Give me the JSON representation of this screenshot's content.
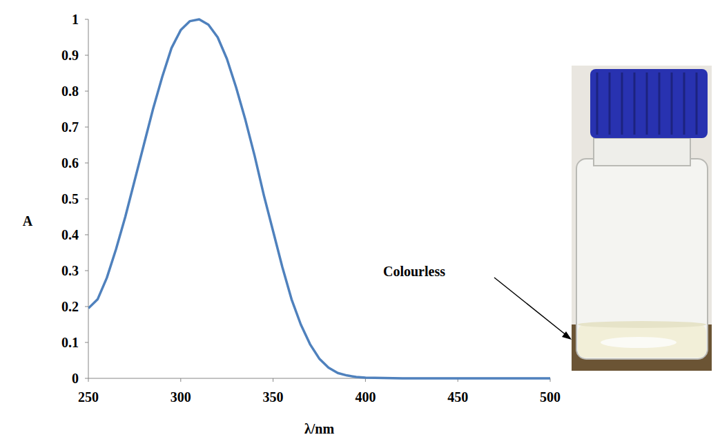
{
  "chart_data": {
    "type": "line",
    "x_label": "λ/nm",
    "y_label": "A",
    "annotation": "Colourless",
    "x": [
      250,
      255,
      260,
      265,
      270,
      275,
      280,
      285,
      290,
      295,
      300,
      305,
      310,
      315,
      320,
      325,
      330,
      335,
      340,
      345,
      350,
      355,
      360,
      365,
      370,
      375,
      380,
      385,
      390,
      395,
      400,
      410,
      420,
      450,
      500
    ],
    "values": [
      0.195,
      0.22,
      0.28,
      0.36,
      0.45,
      0.55,
      0.65,
      0.75,
      0.84,
      0.92,
      0.97,
      0.995,
      1.0,
      0.985,
      0.95,
      0.89,
      0.81,
      0.72,
      0.62,
      0.51,
      0.41,
      0.31,
      0.22,
      0.15,
      0.095,
      0.055,
      0.03,
      0.015,
      0.008,
      0.004,
      0.002,
      0.001,
      0,
      0,
      0
    ],
    "color": "#4f81bd",
    "line_style": "solid",
    "xlim": [
      250,
      500
    ],
    "ylim": [
      0,
      1
    ],
    "xticks": [
      250,
      300,
      350,
      400,
      450,
      500
    ],
    "yticks": [
      0,
      0.1,
      0.2,
      0.3,
      0.4,
      0.5,
      0.6,
      0.7,
      0.8,
      0.9,
      1
    ],
    "grid": false
  }
}
